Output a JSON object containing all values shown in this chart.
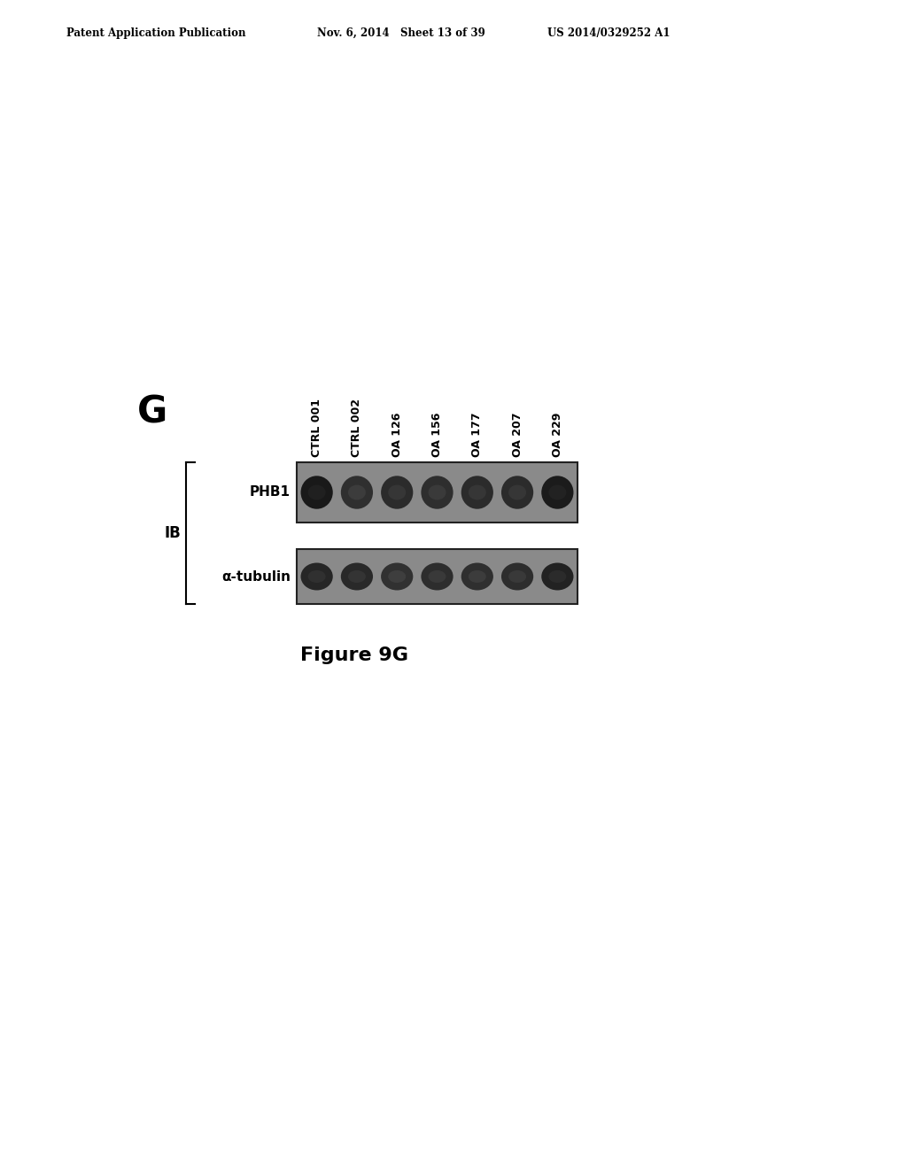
{
  "header_left": "Patent Application Publication",
  "header_mid": "Nov. 6, 2014   Sheet 13 of 39",
  "header_right": "US 2014/0329252 A1",
  "panel_label": "G",
  "lane_labels": [
    "CTRL 001",
    "CTRL 002",
    "OA 126",
    "OA 156",
    "OA 177",
    "OA 207",
    "OA 229"
  ],
  "row_labels": [
    "PHB1",
    "α-tubulin"
  ],
  "ib_label": "IB",
  "figure_caption": "Figure 9G",
  "bg_color": "#ffffff",
  "blot_bg": "#8a8a8a",
  "blot_box_color": "#222222",
  "phb1_intensities": [
    0.92,
    0.58,
    0.65,
    0.6,
    0.65,
    0.65,
    0.9
  ],
  "tubulin_intensities": [
    0.72,
    0.68,
    0.55,
    0.62,
    0.58,
    0.62,
    0.78
  ]
}
